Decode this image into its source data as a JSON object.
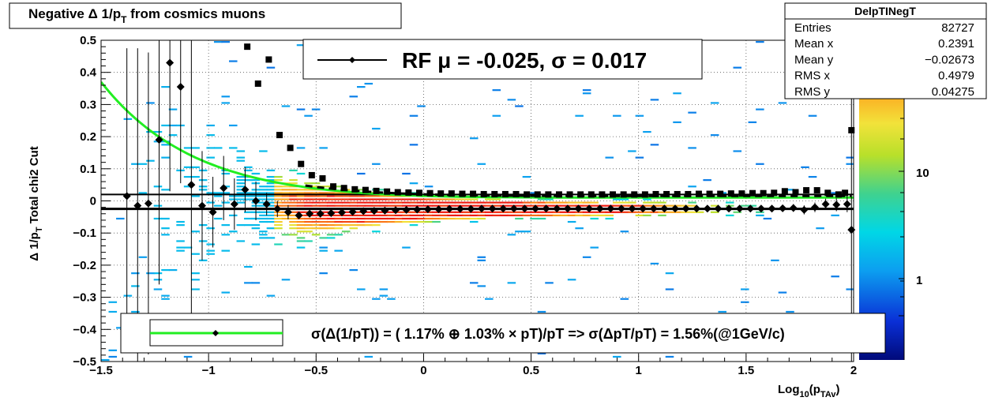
{
  "title": {
    "prefix": "Negative Δ 1/p",
    "sub": "T",
    "suffix": " from cosmics muons"
  },
  "stats": {
    "name": "DelpTINegT",
    "rows": [
      {
        "label": "Entries",
        "value": "82727"
      },
      {
        "label": "Mean x",
        "value": "0.2391"
      },
      {
        "label": "Mean y",
        "value": "−0.02673"
      },
      {
        "label": "RMS x",
        "value": "0.4979"
      },
      {
        "label": "RMS y",
        "value": "0.04275"
      }
    ]
  },
  "legend_top": {
    "text": "RF μ = -0.025, σ =   0.017"
  },
  "legend_bottom": {
    "text": "σ(Δ(1/pT)) = ( 1.17% ⊕  1.03% × pT)/pT => σ(ΔpT/pT) =  1.56%(@1GeV/c)"
  },
  "colors": {
    "fit_curve": "#22ee22",
    "points": "#000000",
    "frame": "#000000"
  },
  "chart_data": {
    "type": "heatmap",
    "title": "Negative Δ 1/pT from cosmics muons",
    "xlabel": "Log10(pTAv)",
    "ylabel": "Δ 1/pT   Total chi2 Cut",
    "xlim": [
      -1.5,
      2.0
    ],
    "ylim": [
      -0.5,
      0.5
    ],
    "x_ticks": [
      -1.5,
      -1,
      -0.5,
      0,
      0.5,
      1,
      1.5,
      2
    ],
    "x_tick_labels": [
      "−1.5",
      "−1",
      "−0.5",
      "0",
      "0.5",
      "1",
      "1.5",
      "2"
    ],
    "y_ticks": [
      -0.5,
      -0.4,
      -0.3,
      -0.2,
      -0.1,
      0,
      0.1,
      0.2,
      0.3,
      0.4,
      0.5
    ],
    "y_tick_labels": [
      "−0.5",
      "−0.4",
      "−0.3",
      "−0.2",
      "−0.1",
      "0",
      "0.1",
      "0.2",
      "0.3",
      "0.4",
      "0.5"
    ],
    "grid": true,
    "z_scale": "log",
    "z_tick_labels": [
      "1",
      "10"
    ],
    "mean_points": [
      {
        "x": -1.38,
        "y": 0.015,
        "err": 0.46
      },
      {
        "x": -1.33,
        "y": -0.015,
        "err": 0.49
      },
      {
        "x": -1.28,
        "y": -0.008,
        "err": 0.47
      },
      {
        "x": -1.23,
        "y": 0.19,
        "err": 0.45
      },
      {
        "x": -1.18,
        "y": 0.43,
        "err": 0.4
      },
      {
        "x": -1.13,
        "y": 0.355,
        "err": 0.3
      },
      {
        "x": -1.08,
        "y": 0.05,
        "err": 0.47
      },
      {
        "x": -1.03,
        "y": -0.015,
        "err": 0.17
      },
      {
        "x": -0.98,
        "y": -0.035,
        "err": 0.11
      },
      {
        "x": -0.93,
        "y": 0.04,
        "err": 0.1
      },
      {
        "x": -0.88,
        "y": -0.01,
        "err": 0.08
      },
      {
        "x": -0.83,
        "y": 0.035,
        "err": 0.07
      },
      {
        "x": -0.78,
        "y": 0.0,
        "err": 0.06
      },
      {
        "x": -0.73,
        "y": -0.01,
        "err": 0.035
      },
      {
        "x": -0.68,
        "y": -0.025,
        "err": 0.025
      },
      {
        "x": -0.63,
        "y": -0.035,
        "err": 0.022
      },
      {
        "x": -0.58,
        "y": -0.045,
        "err": 0.012
      },
      {
        "x": -0.53,
        "y": -0.04,
        "err": 0.01
      },
      {
        "x": -0.48,
        "y": -0.04,
        "err": 0.008
      },
      {
        "x": -0.43,
        "y": -0.038,
        "err": 0.006
      },
      {
        "x": -0.38,
        "y": -0.036,
        "err": 0.006
      },
      {
        "x": -0.33,
        "y": -0.034,
        "err": 0.005
      },
      {
        "x": -0.28,
        "y": -0.032,
        "err": 0.005
      },
      {
        "x": -0.23,
        "y": -0.031,
        "err": 0.005
      },
      {
        "x": -0.18,
        "y": -0.03,
        "err": 0.005
      },
      {
        "x": -0.13,
        "y": -0.029,
        "err": 0.005
      },
      {
        "x": -0.08,
        "y": -0.028,
        "err": 0.005
      },
      {
        "x": -0.03,
        "y": -0.027,
        "err": 0.005
      },
      {
        "x": 0.02,
        "y": -0.026,
        "err": 0.005
      },
      {
        "x": 0.07,
        "y": -0.026,
        "err": 0.005
      },
      {
        "x": 0.12,
        "y": -0.025,
        "err": 0.005
      },
      {
        "x": 0.17,
        "y": -0.025,
        "err": 0.005
      },
      {
        "x": 0.22,
        "y": -0.025,
        "err": 0.005
      },
      {
        "x": 0.27,
        "y": -0.024,
        "err": 0.005
      },
      {
        "x": 0.32,
        "y": -0.024,
        "err": 0.005
      },
      {
        "x": 0.37,
        "y": -0.024,
        "err": 0.005
      },
      {
        "x": 0.42,
        "y": -0.024,
        "err": 0.005
      },
      {
        "x": 0.47,
        "y": -0.024,
        "err": 0.005
      },
      {
        "x": 0.52,
        "y": -0.024,
        "err": 0.005
      },
      {
        "x": 0.57,
        "y": -0.024,
        "err": 0.005
      },
      {
        "x": 0.62,
        "y": -0.024,
        "err": 0.005
      },
      {
        "x": 0.67,
        "y": -0.024,
        "err": 0.005
      },
      {
        "x": 0.72,
        "y": -0.024,
        "err": 0.005
      },
      {
        "x": 0.77,
        "y": -0.024,
        "err": 0.005
      },
      {
        "x": 0.82,
        "y": -0.024,
        "err": 0.005
      },
      {
        "x": 0.87,
        "y": -0.024,
        "err": 0.005
      },
      {
        "x": 0.92,
        "y": -0.024,
        "err": 0.005
      },
      {
        "x": 0.97,
        "y": -0.024,
        "err": 0.005
      },
      {
        "x": 1.02,
        "y": -0.024,
        "err": 0.005
      },
      {
        "x": 1.07,
        "y": -0.024,
        "err": 0.005
      },
      {
        "x": 1.12,
        "y": -0.024,
        "err": 0.006
      },
      {
        "x": 1.17,
        "y": -0.024,
        "err": 0.006
      },
      {
        "x": 1.22,
        "y": -0.024,
        "err": 0.006
      },
      {
        "x": 1.27,
        "y": -0.024,
        "err": 0.006
      },
      {
        "x": 1.32,
        "y": -0.024,
        "err": 0.006
      },
      {
        "x": 1.37,
        "y": -0.024,
        "err": 0.006
      },
      {
        "x": 1.42,
        "y": -0.024,
        "err": 0.006
      },
      {
        "x": 1.47,
        "y": -0.024,
        "err": 0.007
      },
      {
        "x": 1.52,
        "y": -0.024,
        "err": 0.007
      },
      {
        "x": 1.57,
        "y": -0.024,
        "err": 0.008
      },
      {
        "x": 1.62,
        "y": -0.024,
        "err": 0.009
      },
      {
        "x": 1.67,
        "y": -0.023,
        "err": 0.01
      },
      {
        "x": 1.72,
        "y": -0.022,
        "err": 0.012
      },
      {
        "x": 1.77,
        "y": -0.028,
        "err": 0.014
      },
      {
        "x": 1.82,
        "y": -0.02,
        "err": 0.015
      },
      {
        "x": 1.87,
        "y": -0.01,
        "err": 0.017
      },
      {
        "x": 1.92,
        "y": -0.012,
        "err": 0.02
      },
      {
        "x": 1.97,
        "y": -0.01,
        "err": 0.025
      },
      {
        "x": 1.99,
        "y": -0.09,
        "err": 0.5
      }
    ],
    "sigma_points": [
      {
        "x": -0.82,
        "y": 0.48
      },
      {
        "x": -0.77,
        "y": 0.365
      },
      {
        "x": -0.72,
        "y": 0.44
      },
      {
        "x": -0.67,
        "y": 0.205
      },
      {
        "x": -0.62,
        "y": 0.165
      },
      {
        "x": -0.57,
        "y": 0.115
      },
      {
        "x": -0.52,
        "y": 0.08
      },
      {
        "x": -0.47,
        "y": 0.07
      },
      {
        "x": -0.42,
        "y": 0.045
      },
      {
        "x": -0.37,
        "y": 0.04
      },
      {
        "x": -0.32,
        "y": 0.036
      },
      {
        "x": -0.27,
        "y": 0.034
      },
      {
        "x": -0.22,
        "y": 0.031
      },
      {
        "x": -0.17,
        "y": 0.029
      },
      {
        "x": -0.12,
        "y": 0.027
      },
      {
        "x": -0.07,
        "y": 0.026
      },
      {
        "x": -0.02,
        "y": 0.025
      },
      {
        "x": 0.03,
        "y": 0.024
      },
      {
        "x": 0.08,
        "y": 0.023
      },
      {
        "x": 0.13,
        "y": 0.023
      },
      {
        "x": 0.18,
        "y": 0.022
      },
      {
        "x": 0.23,
        "y": 0.022
      },
      {
        "x": 0.28,
        "y": 0.021
      },
      {
        "x": 0.33,
        "y": 0.021
      },
      {
        "x": 0.38,
        "y": 0.021
      },
      {
        "x": 0.43,
        "y": 0.021
      },
      {
        "x": 0.48,
        "y": 0.02
      },
      {
        "x": 0.53,
        "y": 0.02
      },
      {
        "x": 0.58,
        "y": 0.02
      },
      {
        "x": 0.63,
        "y": 0.02
      },
      {
        "x": 0.68,
        "y": 0.02
      },
      {
        "x": 0.73,
        "y": 0.02
      },
      {
        "x": 0.78,
        "y": 0.02
      },
      {
        "x": 0.83,
        "y": 0.02
      },
      {
        "x": 0.88,
        "y": 0.02
      },
      {
        "x": 0.93,
        "y": 0.02
      },
      {
        "x": 0.98,
        "y": 0.02
      },
      {
        "x": 1.03,
        "y": 0.02
      },
      {
        "x": 1.08,
        "y": 0.021
      },
      {
        "x": 1.13,
        "y": 0.021
      },
      {
        "x": 1.18,
        "y": 0.021
      },
      {
        "x": 1.23,
        "y": 0.021
      },
      {
        "x": 1.28,
        "y": 0.022
      },
      {
        "x": 1.33,
        "y": 0.022
      },
      {
        "x": 1.38,
        "y": 0.022
      },
      {
        "x": 1.43,
        "y": 0.023
      },
      {
        "x": 1.48,
        "y": 0.023
      },
      {
        "x": 1.53,
        "y": 0.024
      },
      {
        "x": 1.58,
        "y": 0.024
      },
      {
        "x": 1.63,
        "y": 0.025
      },
      {
        "x": 1.68,
        "y": 0.03
      },
      {
        "x": 1.73,
        "y": 0.027
      },
      {
        "x": 1.78,
        "y": 0.033
      },
      {
        "x": 1.83,
        "y": 0.033
      },
      {
        "x": 1.88,
        "y": 0.025
      },
      {
        "x": 1.93,
        "y": 0.02
      },
      {
        "x": 1.96,
        "y": 0.025
      },
      {
        "x": 1.99,
        "y": 0.22
      }
    ],
    "resolution_fit": {
      "a": 0.0117,
      "b": 0.0103
    },
    "mean_fit": -0.025,
    "sigma_fit": 0.017
  }
}
